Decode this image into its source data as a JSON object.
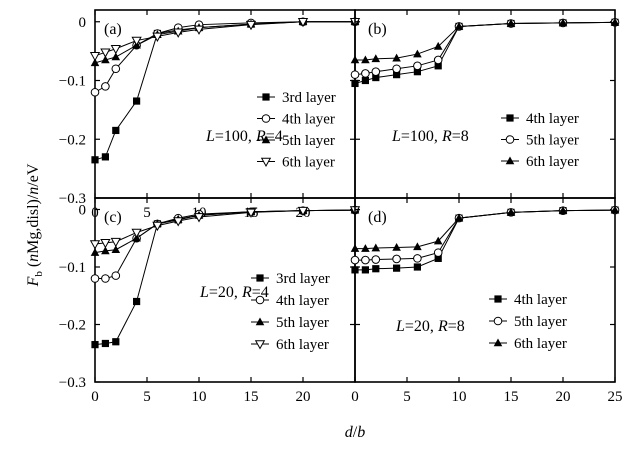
{
  "figure": {
    "ylabel_parts": [
      "F",
      "b",
      " (",
      "n",
      "Mg,disl)/",
      "n",
      "/eV"
    ],
    "xlabel_parts": [
      "d",
      "/",
      "b"
    ]
  },
  "chart_data": [
    {
      "panel": "(a)",
      "type": "line",
      "annotation": [
        "L",
        "=100, ",
        "R",
        "=4"
      ],
      "xlim": [
        0,
        25
      ],
      "ylim": [
        -0.3,
        0.02
      ],
      "xticks": [
        0,
        5,
        10,
        15,
        20
      ],
      "xtick_labels": [
        "0",
        "5",
        "10",
        "15",
        "20"
      ],
      "yticks": [
        0,
        -0.1,
        -0.2,
        -0.3
      ],
      "ytick_labels": [
        "0",
        "−0.1",
        "−0.2",
        "−0.3"
      ],
      "legend": "right",
      "series": [
        {
          "name": "3rd layer",
          "marker": "square-filled",
          "x": [
            0,
            1,
            2,
            4,
            6,
            8,
            10,
            15,
            20,
            25
          ],
          "y": [
            -0.235,
            -0.23,
            -0.185,
            -0.135,
            -0.02,
            -0.014,
            -0.01,
            -0.004,
            0,
            0
          ]
        },
        {
          "name": "4th layer",
          "marker": "circle-open",
          "x": [
            0,
            1,
            2,
            4,
            6,
            8,
            10,
            15,
            20,
            25
          ],
          "y": [
            -0.12,
            -0.11,
            -0.08,
            -0.04,
            -0.02,
            -0.01,
            -0.005,
            -0.002,
            0,
            0
          ]
        },
        {
          "name": "5th layer",
          "marker": "triangle-filled",
          "x": [
            0,
            1,
            2,
            4,
            6,
            8,
            10,
            15,
            20,
            25
          ],
          "y": [
            -0.07,
            -0.065,
            -0.06,
            -0.04,
            -0.022,
            -0.016,
            -0.01,
            -0.004,
            0,
            0
          ]
        },
        {
          "name": "6th layer",
          "marker": "triangle-down-open",
          "x": [
            0,
            1,
            2,
            4,
            6,
            8,
            10,
            15,
            20,
            25
          ],
          "y": [
            -0.058,
            -0.052,
            -0.046,
            -0.032,
            -0.025,
            -0.018,
            -0.013,
            -0.005,
            0,
            0
          ]
        }
      ]
    },
    {
      "panel": "(b)",
      "type": "line",
      "annotation": [
        "L",
        "=100, ",
        "R",
        "=8"
      ],
      "xlim": [
        0,
        25
      ],
      "ylim": [
        -0.3,
        0.02
      ],
      "xticks": [
        0,
        5,
        10,
        15,
        20,
        25
      ],
      "xtick_labels": [],
      "yticks": [
        0,
        -0.1,
        -0.2,
        -0.3
      ],
      "ytick_labels": [],
      "legend": "right",
      "series": [
        {
          "name": "4th layer",
          "marker": "square-filled",
          "x": [
            0,
            1,
            2,
            4,
            6,
            8,
            10,
            15,
            20,
            25
          ],
          "y": [
            -0.105,
            -0.1,
            -0.095,
            -0.09,
            -0.085,
            -0.075,
            -0.008,
            -0.003,
            -0.002,
            -0.001
          ]
        },
        {
          "name": "5th layer",
          "marker": "circle-open",
          "x": [
            0,
            1,
            2,
            4,
            6,
            8,
            10,
            15,
            20,
            25
          ],
          "y": [
            -0.09,
            -0.088,
            -0.085,
            -0.08,
            -0.075,
            -0.065,
            -0.008,
            -0.003,
            -0.002,
            -0.001
          ]
        },
        {
          "name": "6th layer",
          "marker": "triangle-filled",
          "x": [
            0,
            1,
            2,
            4,
            6,
            8,
            10,
            15,
            20,
            25
          ],
          "y": [
            -0.065,
            -0.065,
            -0.063,
            -0.062,
            -0.055,
            -0.042,
            -0.008,
            -0.003,
            -0.002,
            -0.001
          ]
        }
      ]
    },
    {
      "panel": "(c)",
      "type": "line",
      "annotation": [
        "L",
        "=20, ",
        "R",
        "=4"
      ],
      "xlim": [
        0,
        25
      ],
      "ylim": [
        -0.3,
        0.02
      ],
      "xticks": [
        0,
        5,
        10,
        15,
        20
      ],
      "xtick_labels": [
        "0",
        "5",
        "10",
        "15",
        "20"
      ],
      "yticks": [
        0,
        -0.1,
        -0.2,
        -0.3
      ],
      "ytick_labels": [
        "0",
        "−0.1",
        "−0.2",
        "−0.3"
      ],
      "legend": "right",
      "series": [
        {
          "name": "3rd layer",
          "marker": "square-filled",
          "x": [
            0,
            1,
            2,
            4,
            6,
            8,
            10,
            15,
            20,
            25
          ],
          "y": [
            -0.235,
            -0.233,
            -0.23,
            -0.16,
            -0.025,
            -0.018,
            -0.01,
            -0.004,
            -0.002,
            -0.001
          ]
        },
        {
          "name": "4th layer",
          "marker": "circle-open",
          "x": [
            0,
            1,
            2,
            4,
            6,
            8,
            10,
            15,
            20,
            25
          ],
          "y": [
            -0.12,
            -0.12,
            -0.115,
            -0.05,
            -0.025,
            -0.015,
            -0.008,
            -0.004,
            -0.002,
            -0.001
          ]
        },
        {
          "name": "5th layer",
          "marker": "triangle-filled",
          "x": [
            0,
            1,
            2,
            4,
            6,
            8,
            10,
            15,
            20,
            25
          ],
          "y": [
            -0.075,
            -0.072,
            -0.07,
            -0.05,
            -0.025,
            -0.017,
            -0.01,
            -0.004,
            -0.002,
            -0.001
          ]
        },
        {
          "name": "6th layer",
          "marker": "triangle-down-open",
          "x": [
            0,
            1,
            2,
            4,
            6,
            8,
            10,
            15,
            20,
            25
          ],
          "y": [
            -0.06,
            -0.058,
            -0.056,
            -0.04,
            -0.028,
            -0.02,
            -0.013,
            -0.005,
            -0.002,
            -0.001
          ]
        }
      ]
    },
    {
      "panel": "(d)",
      "type": "line",
      "annotation": [
        "L",
        "=20, ",
        "R",
        "=8"
      ],
      "xlim": [
        0,
        25
      ],
      "ylim": [
        -0.3,
        0.02
      ],
      "xticks": [
        0,
        5,
        10,
        15,
        20,
        25
      ],
      "xtick_labels": [
        "0",
        "5",
        "10",
        "15",
        "20",
        "25"
      ],
      "yticks": [
        0,
        -0.1,
        -0.2,
        -0.3
      ],
      "ytick_labels": [],
      "legend": "right",
      "series": [
        {
          "name": "4th layer",
          "marker": "square-filled",
          "x": [
            0,
            1,
            2,
            4,
            6,
            8,
            10,
            15,
            20,
            25
          ],
          "y": [
            -0.105,
            -0.105,
            -0.103,
            -0.102,
            -0.1,
            -0.085,
            -0.015,
            -0.005,
            -0.002,
            -0.001
          ]
        },
        {
          "name": "5th layer",
          "marker": "circle-open",
          "x": [
            0,
            1,
            2,
            4,
            6,
            8,
            10,
            15,
            20,
            25
          ],
          "y": [
            -0.088,
            -0.088,
            -0.087,
            -0.086,
            -0.085,
            -0.075,
            -0.015,
            -0.005,
            -0.002,
            -0.001
          ]
        },
        {
          "name": "6th layer",
          "marker": "triangle-filled",
          "x": [
            0,
            1,
            2,
            4,
            6,
            8,
            10,
            15,
            20,
            25
          ],
          "y": [
            -0.068,
            -0.068,
            -0.067,
            -0.066,
            -0.065,
            -0.055,
            -0.015,
            -0.005,
            -0.002,
            -0.001
          ]
        }
      ]
    }
  ]
}
